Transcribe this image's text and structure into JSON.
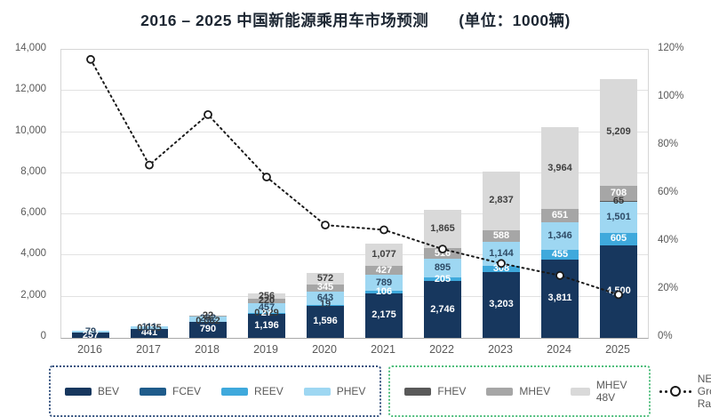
{
  "chart_data": {
    "type": "bar-line-combo",
    "title": "2016 – 2025 中国新能源乘用车市场预测",
    "unit_label": "(单位：1000辆)",
    "categories": [
      "2016",
      "2017",
      "2018",
      "2019",
      "2020",
      "2021",
      "2022",
      "2023",
      "2024",
      "2025"
    ],
    "stacked": true,
    "grid": true,
    "stacked_series": [
      {
        "name": "BEV",
        "color": "#17375e",
        "label_color": "#ffffff",
        "values": [
          257,
          441,
          790,
          1196,
          1596,
          2175,
          2746,
          3203,
          3811,
          4500
        ],
        "labels": [
          "257",
          "441",
          "790",
          "1,196",
          "1,596",
          "2,175",
          "2,746",
          "3,203",
          "3,811",
          "4,500"
        ]
      },
      {
        "name": "FCEV",
        "color": "#1f5c8b",
        "label_color": "#3a3a3a",
        "values": [
          0,
          0.035,
          0.062,
          0.529,
          0,
          0,
          0,
          0,
          0,
          0
        ],
        "labels": [
          null,
          "0.035",
          "0.062",
          "0.529",
          null,
          null,
          null,
          null,
          null,
          null
        ]
      },
      {
        "name": "REEV",
        "color": "#3fa9dc",
        "label_color": "#ffffff",
        "label_color_overrides": {
          "4": "#2f3b4c"
        },
        "values": [
          0,
          0,
          0,
          27,
          19,
          106,
          205,
          308,
          455,
          605
        ],
        "labels": [
          null,
          null,
          null,
          "27",
          "19",
          "106",
          "205",
          "308",
          "455",
          "605"
        ]
      },
      {
        "name": "PHEV",
        "color": "#9ed7f2",
        "label_color": "#2f4b66",
        "values": [
          79,
          111,
          262,
          457,
          643,
          789,
          895,
          1144,
          1346,
          1501
        ],
        "labels": [
          "79",
          "111",
          "262",
          "457",
          "643",
          "789",
          "895",
          "1,144",
          "1,346",
          "1,501"
        ]
      },
      {
        "name": "FHEV",
        "color": "#595959",
        "label_color": "#3a3a3a",
        "values": [
          0,
          0,
          0,
          0,
          0,
          0,
          0,
          0,
          0,
          65
        ],
        "labels": [
          null,
          null,
          null,
          null,
          null,
          null,
          null,
          null,
          null,
          "65"
        ]
      },
      {
        "name": "MHEV",
        "color": "#a6a6a6",
        "label_color": "#ffffff",
        "label_color_overrides": {
          "2": "#3a3a3a",
          "3": "#3a3a3a"
        },
        "values": [
          0,
          0,
          22,
          220,
          345,
          427,
          516,
          588,
          651,
          708
        ],
        "labels": [
          null,
          null,
          "22",
          "220",
          "345",
          "427",
          "516",
          "588",
          "651",
          "708"
        ]
      },
      {
        "name": "MHEV 48V",
        "color": "#d9d9d9",
        "label_color": "#404040",
        "values": [
          0,
          0,
          0,
          256,
          572,
          1077,
          1865,
          2837,
          3964,
          5209
        ],
        "labels": [
          null,
          null,
          null,
          "256",
          "572",
          "1,077",
          "1,865",
          "2,837",
          "3,964",
          "5,209"
        ]
      }
    ],
    "line_series": {
      "name": "NEV Growth Rate",
      "style": "dotted",
      "marker": "open-circle",
      "color": "#1a1a1a",
      "values_pct": [
        116,
        72,
        93,
        67,
        47,
        45,
        37,
        31,
        26,
        18
      ]
    },
    "left_axis": {
      "min": 0,
      "max": 14000,
      "ticks": [
        "14,000",
        "12,000",
        "10,000",
        "8,000",
        "6,000",
        "4,000",
        "2,000",
        "0"
      ]
    },
    "right_axis": {
      "min": 0,
      "max": 120,
      "ticks": [
        "120%",
        "100%",
        "80%",
        "60%",
        "40%",
        "20%",
        "0%"
      ]
    }
  },
  "legend": {
    "groups": [
      {
        "id": "ev-group",
        "border_color": "#33517e",
        "series_indexes": [
          0,
          1,
          2,
          3
        ]
      },
      {
        "id": "hybrid-group",
        "border_color": "#4fbe7c",
        "series_indexes": [
          4,
          5,
          6
        ]
      }
    ]
  }
}
